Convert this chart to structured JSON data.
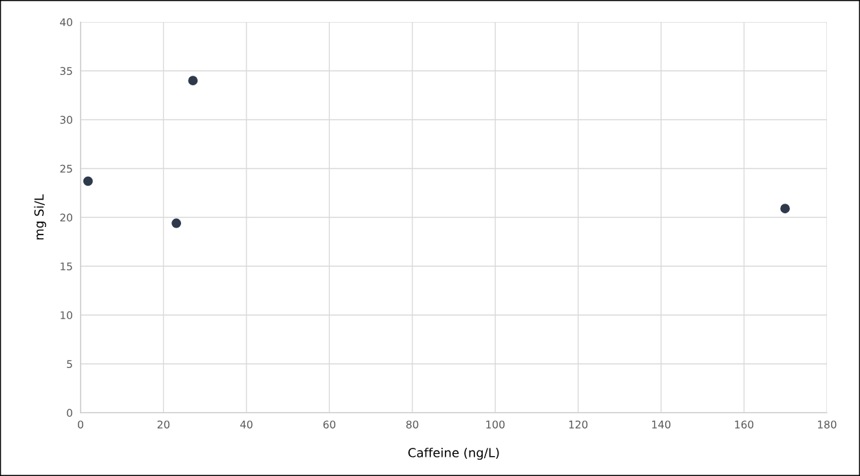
{
  "chart_data": {
    "type": "scatter",
    "xlabel": "Caffeine (ng/L)",
    "ylabel": "mg Si/L",
    "x": [
      1.8,
      23.1,
      27.1,
      169.9
    ],
    "series": [
      {
        "color": "#2e3a4c",
        "values": [
          23.7,
          19.4,
          34.0,
          20.9
        ]
      }
    ],
    "xlim": [
      0,
      180
    ],
    "xticks": [
      0,
      20,
      40,
      60,
      80,
      100,
      120,
      140,
      160,
      180
    ],
    "ylim": [
      0,
      40
    ],
    "yticks": [
      0,
      5,
      10,
      15,
      20,
      25,
      30,
      35,
      40
    ],
    "grid": true,
    "marker": "circle"
  }
}
